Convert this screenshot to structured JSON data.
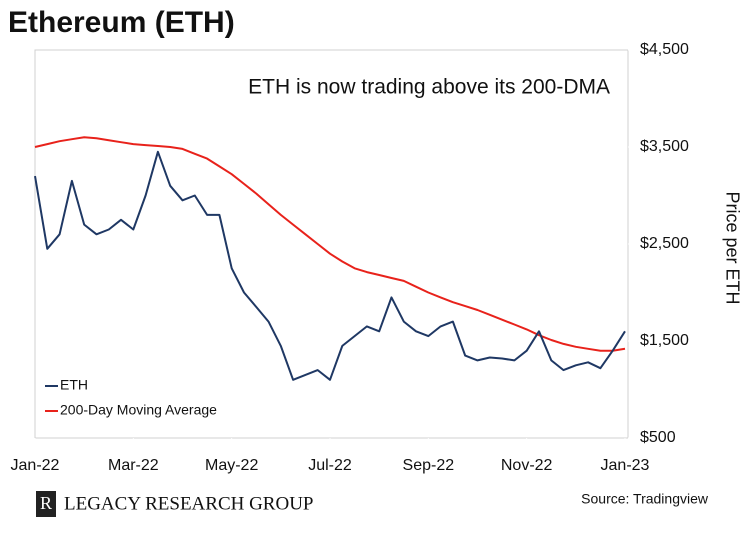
{
  "chart_data": {
    "type": "line",
    "title": "Ethereum (ETH)",
    "annotation": "ETH is now trading above its 200-DMA",
    "y_axis_label": "Price per ETH",
    "source": "Source: Tradingview",
    "brand": "LEGACY RESEARCH GROUP",
    "logo_mark": "R",
    "x": [
      0,
      0.25,
      0.5,
      0.75,
      1,
      1.25,
      1.5,
      1.75,
      2,
      2.25,
      2.5,
      2.75,
      3,
      3.25,
      3.5,
      3.75,
      4,
      4.25,
      4.5,
      4.75,
      5,
      5.25,
      5.5,
      5.75,
      6,
      6.25,
      6.5,
      6.75,
      7,
      7.25,
      7.5,
      7.75,
      8,
      8.25,
      8.5,
      8.75,
      9,
      9.25,
      9.5,
      9.75,
      10,
      10.25,
      10.5,
      10.75,
      11,
      11.25,
      11.5,
      11.75,
      12
    ],
    "xlim": [
      0,
      12
    ],
    "xticks": [
      {
        "value": 0,
        "label": "Jan-22"
      },
      {
        "value": 2,
        "label": "Mar-22"
      },
      {
        "value": 4,
        "label": "May-22"
      },
      {
        "value": 6,
        "label": "Jul-22"
      },
      {
        "value": 8,
        "label": "Sep-22"
      },
      {
        "value": 10,
        "label": "Nov-22"
      },
      {
        "value": 12,
        "label": "Jan-23"
      }
    ],
    "ylim": [
      500,
      4500
    ],
    "yticks": [
      {
        "value": 500,
        "label": "$500"
      },
      {
        "value": 1500,
        "label": "$1,500"
      },
      {
        "value": 2500,
        "label": "$2,500"
      },
      {
        "value": 3500,
        "label": "$3,500"
      },
      {
        "value": 4500,
        "label": "$4,500"
      }
    ],
    "grid": false,
    "legend": "lower left",
    "series": [
      {
        "name": "ETH",
        "color": "#1f3864",
        "values": [
          3200,
          2450,
          2600,
          3150,
          2700,
          2600,
          2650,
          2750,
          2650,
          3000,
          3450,
          3100,
          2950,
          3000,
          2800,
          2800,
          2250,
          2000,
          1850,
          1700,
          1450,
          1100,
          1150,
          1200,
          1100,
          1450,
          1550,
          1650,
          1600,
          1950,
          1700,
          1600,
          1550,
          1650,
          1700,
          1350,
          1300,
          1330,
          1320,
          1300,
          1400,
          1600,
          1300,
          1200,
          1250,
          1280,
          1220,
          1400,
          1600
        ]
      },
      {
        "name": "200-Day Moving Average",
        "color": "#e8221b",
        "values": [
          3500,
          3530,
          3560,
          3580,
          3600,
          3590,
          3570,
          3550,
          3530,
          3520,
          3510,
          3500,
          3480,
          3430,
          3380,
          3300,
          3220,
          3120,
          3020,
          2910,
          2800,
          2700,
          2600,
          2500,
          2400,
          2320,
          2250,
          2210,
          2180,
          2150,
          2120,
          2060,
          2000,
          1950,
          1900,
          1860,
          1820,
          1770,
          1720,
          1670,
          1620,
          1560,
          1510,
          1470,
          1440,
          1420,
          1400,
          1400,
          1420
        ]
      }
    ]
  }
}
